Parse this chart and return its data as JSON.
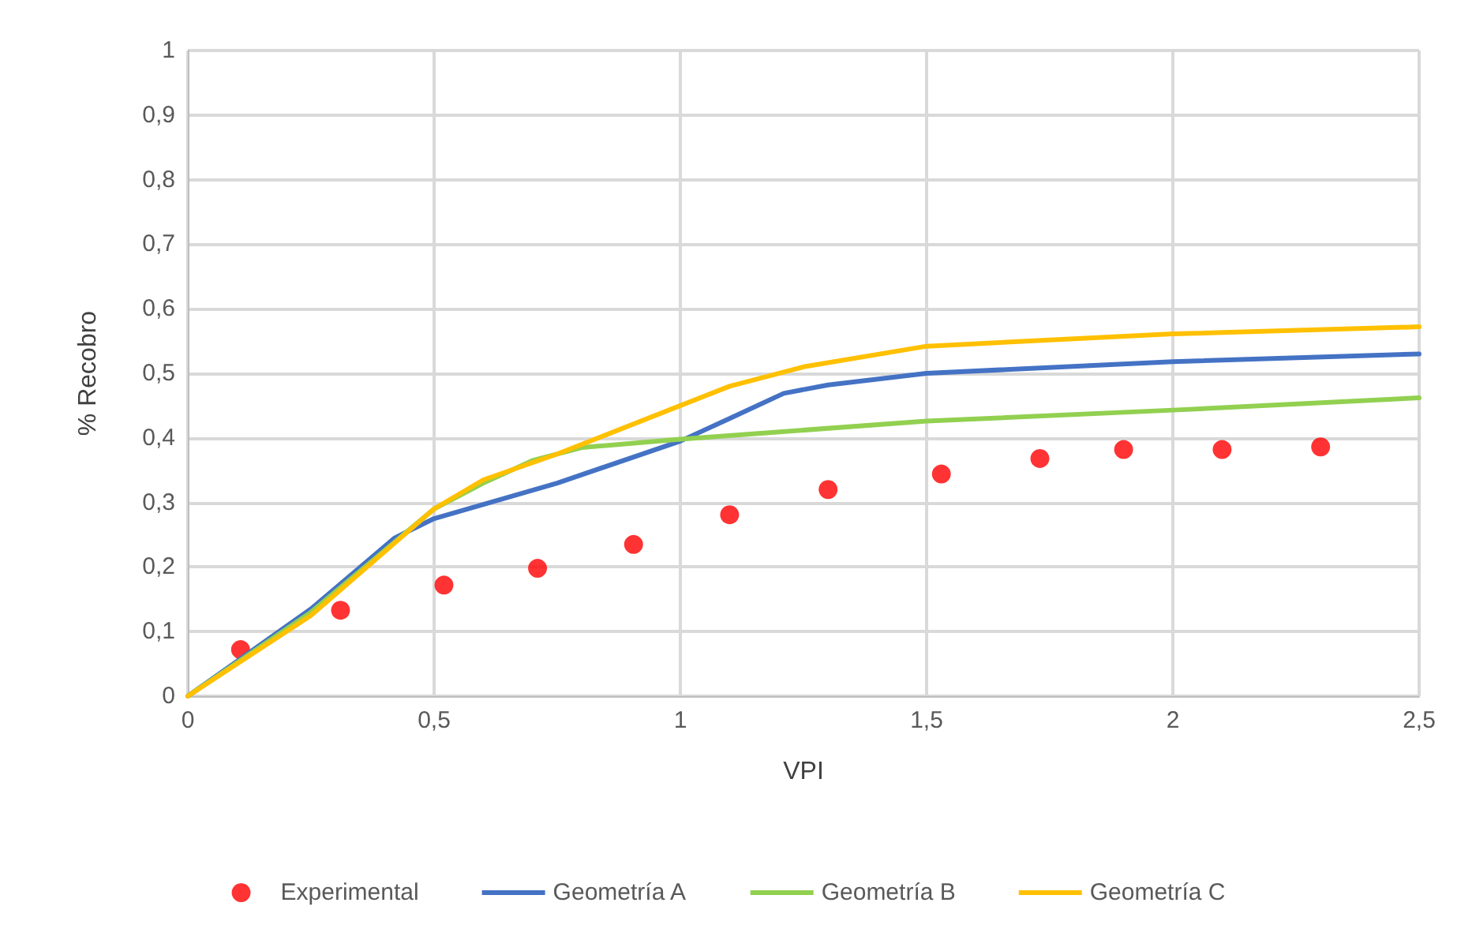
{
  "chart_data": {
    "type": "line",
    "xlabel": "VPI",
    "ylabel": "% Recobro",
    "xlim": [
      0,
      2.5
    ],
    "xticks": [
      {
        "value": 0,
        "label": "0"
      },
      {
        "value": 0.5,
        "label": "0,5"
      },
      {
        "value": 1,
        "label": "1"
      },
      {
        "value": 1.5,
        "label": "1,5"
      },
      {
        "value": 2,
        "label": "2"
      },
      {
        "value": 2.5,
        "label": "2,5"
      }
    ],
    "ylim": [
      0,
      1
    ],
    "yticks": [
      {
        "value": 0,
        "label": "0"
      },
      {
        "value": 0.1,
        "label": "0,1"
      },
      {
        "value": 0.2,
        "label": "0,2"
      },
      {
        "value": 0.3,
        "label": "0,3"
      },
      {
        "value": 0.4,
        "label": "0,4"
      },
      {
        "value": 0.5,
        "label": "0,5"
      },
      {
        "value": 0.6,
        "label": "0,6"
      },
      {
        "value": 0.7,
        "label": "0,7"
      },
      {
        "value": 0.8,
        "label": "0,8"
      },
      {
        "value": 0.9,
        "label": "0,9"
      },
      {
        "value": 1,
        "label": "1"
      }
    ],
    "grid": true,
    "legend": "bottom",
    "series": [
      {
        "name": "Experimental",
        "type": "scatter",
        "marker": "circle",
        "color": "#ff0000",
        "x": [
          0.107,
          0.31,
          0.52,
          0.71,
          0.905,
          1.1,
          1.3,
          1.53,
          1.73,
          1.9,
          2.1,
          2.3
        ],
        "values": [
          0.072,
          0.133,
          0.172,
          0.198,
          0.235,
          0.281,
          0.32,
          0.344,
          0.368,
          0.382,
          0.382,
          0.386
        ]
      },
      {
        "name": "Geometría A",
        "marker": "none",
        "color": "#4472c4",
        "x": [
          0,
          0.25,
          0.42,
          0.5,
          0.75,
          1.0,
          1.1,
          1.21,
          1.3,
          1.5,
          2.0,
          2.5
        ],
        "values": [
          0,
          0.135,
          0.245,
          0.275,
          0.33,
          0.395,
          0.43,
          0.469,
          0.482,
          0.5,
          0.518,
          0.53
        ]
      },
      {
        "name": "Geometría B",
        "marker": "none",
        "color": "#92d050",
        "x": [
          0,
          0.25,
          0.5,
          0.6,
          0.7,
          0.8,
          1.0,
          1.5,
          2.0,
          2.5
        ],
        "values": [
          0,
          0.13,
          0.29,
          0.33,
          0.365,
          0.385,
          0.398,
          0.426,
          0.443,
          0.462
        ]
      },
      {
        "name": "Geometría C",
        "marker": "none",
        "color": "#ffc000",
        "x": [
          0,
          0.25,
          0.5,
          0.6,
          0.75,
          1.0,
          1.1,
          1.25,
          1.5,
          2.0,
          2.5
        ],
        "values": [
          0,
          0.125,
          0.29,
          0.335,
          0.375,
          0.45,
          0.48,
          0.51,
          0.542,
          0.561,
          0.572
        ]
      }
    ]
  }
}
